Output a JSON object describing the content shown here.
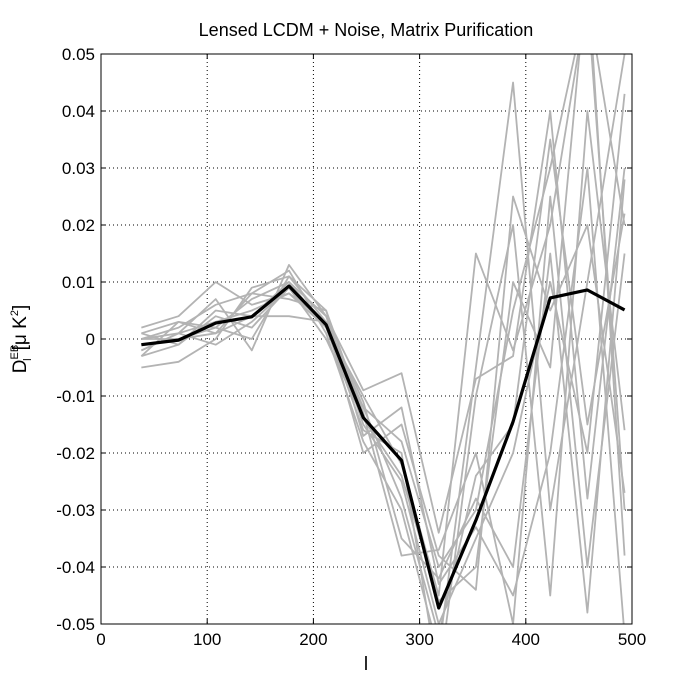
{
  "chart_data": {
    "type": "line",
    "title": "Lensed LCDM + Noise, Matrix Purification",
    "xlabel": "l",
    "ylabel": {
      "base": "D",
      "sup": "EB",
      "sub": "l",
      "unit_open": "[μ K",
      "unit_sup": "2",
      "unit_close": "]"
    },
    "xlim": [
      0,
      500
    ],
    "ylim": [
      -0.05,
      0.05
    ],
    "xticks": [
      0,
      100,
      200,
      300,
      400,
      500
    ],
    "xtick_labels": [
      "0",
      "100",
      "200",
      "300",
      "400",
      "500"
    ],
    "yticks": [
      -0.05,
      -0.04,
      -0.03,
      -0.02,
      -0.01,
      0,
      0.01,
      0.02,
      0.03,
      0.04,
      0.05
    ],
    "ytick_labels": [
      "-0.05",
      "-0.04",
      "-0.03",
      "-0.02",
      "-0.01",
      "0",
      "0.01",
      "0.02",
      "0.03",
      "0.04",
      "0.05"
    ],
    "grid": true,
    "x": [
      38,
      73,
      108,
      142,
      177,
      212,
      247,
      283,
      318,
      353,
      388,
      423,
      458,
      493
    ],
    "mean": {
      "color": "#000000",
      "values": [
        -0.001,
        -0.0002,
        0.0028,
        0.0039,
        0.0093,
        0.0025,
        -0.0138,
        -0.0213,
        -0.0472,
        -0.0318,
        -0.0145,
        0.0072,
        0.0086,
        0.0051
      ]
    },
    "realizations_color": "#b3b3b3",
    "realizations": [
      [
        -0.002,
        0.001,
        0.003,
        0.005,
        0.008,
        0.003,
        -0.012,
        -0.018,
        -0.04,
        -0.03,
        0.005,
        0.03,
        0.06,
        0.02
      ],
      [
        0.001,
        0.003,
        0.001,
        0.004,
        0.01,
        0.004,
        -0.015,
        -0.025,
        -0.05,
        -0.035,
        -0.02,
        0.01,
        -0.02,
        0.043
      ],
      [
        -0.003,
        -0.001,
        0.004,
        0.002,
        0.009,
        0.002,
        -0.01,
        -0.022,
        -0.045,
        0.015,
        -0.002,
        0.02,
        0.06,
        -0.03
      ],
      [
        0.0,
        0.002,
        0.006,
        0.008,
        0.012,
        0.001,
        -0.018,
        -0.03,
        -0.055,
        -0.005,
        0.045,
        -0.03,
        0.01,
        0.05
      ],
      [
        -0.005,
        -0.004,
        0.0,
        0.009,
        0.011,
        0.005,
        -0.013,
        -0.038,
        -0.037,
        -0.02,
        -0.05,
        0.025,
        -0.04,
        0.015
      ],
      [
        0.002,
        0.004,
        0.01,
        0.006,
        0.008,
        0.002,
        -0.016,
        -0.02,
        -0.06,
        -0.01,
        0.02,
        -0.045,
        0.04,
        -0.016
      ],
      [
        -0.001,
        0.0,
        0.002,
        0.0,
        0.011,
        0.003,
        -0.011,
        -0.035,
        -0.042,
        -0.028,
        -0.04,
        0.015,
        -0.048,
        0.028
      ],
      [
        0.0,
        0.001,
        -0.001,
        0.003,
        0.009,
        0.0,
        -0.014,
        -0.024,
        -0.046,
        -0.04,
        0.01,
        -0.005,
        0.065,
        -0.038
      ],
      [
        -0.002,
        0.001,
        0.007,
        -0.002,
        0.013,
        0.004,
        -0.009,
        -0.006,
        -0.034,
        -0.007,
        -0.003,
        0.04,
        -0.028,
        0.03
      ],
      [
        0.001,
        -0.001,
        0.005,
        0.004,
        0.004,
        0.003,
        -0.02,
        -0.015,
        -0.038,
        -0.044,
        0.025,
        0.005,
        0.02,
        -0.027
      ],
      [
        -0.003,
        0.003,
        0.002,
        0.007,
        0.01,
        0.002,
        -0.012,
        -0.028,
        -0.052,
        -0.024,
        -0.015,
        0.035,
        -0.015,
        0.022
      ],
      [
        0.0,
        0.0,
        0.001,
        0.008,
        0.007,
        0.005,
        -0.017,
        -0.012,
        -0.043,
        -0.033,
        -0.045,
        -0.02,
        0.03,
        -0.052
      ]
    ]
  }
}
